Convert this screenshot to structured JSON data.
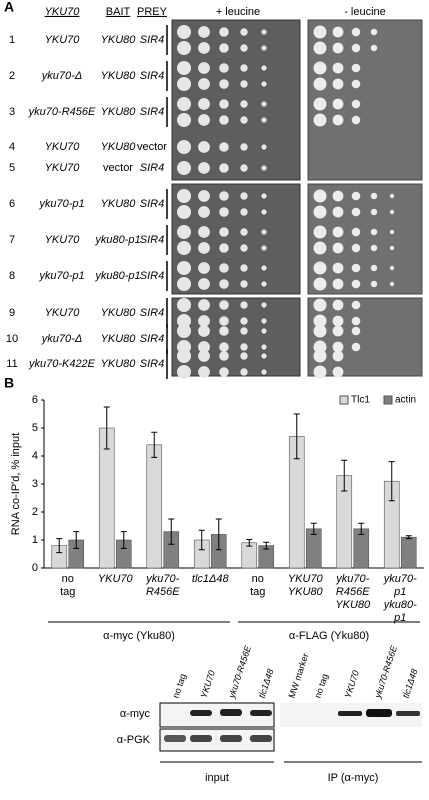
{
  "panel_a": {
    "label": "A",
    "headers": {
      "gene": "YKU70",
      "bait": "BAIT",
      "prey": "PREY",
      "plus": "+ leucine",
      "minus": "- leucine"
    },
    "rows": [
      {
        "number": "1",
        "gene": "YKU70",
        "bait": "YKU80",
        "prey": "SIR4"
      },
      {
        "number": "2",
        "gene": "yku70-Δ",
        "bait": "YKU80",
        "prey": "SIR4"
      },
      {
        "number": "3",
        "gene": "yku70-R456E",
        "bait": "YKU80",
        "prey": "SIR4"
      },
      {
        "number": "4",
        "gene": "YKU70",
        "bait": "YKU80",
        "prey": "vector"
      },
      {
        "number": "5",
        "gene": "YKU70",
        "bait": "vector",
        "prey": "SIR4"
      },
      {
        "number": "6",
        "gene": "yku70-p1",
        "bait": "YKU80",
        "prey": "SIR4"
      },
      {
        "number": "7",
        "gene": "YKU70",
        "bait": "yku80-p1",
        "prey": "SIR4"
      },
      {
        "number": "8",
        "gene": "yku70-p1",
        "bait": "yku80-p1",
        "prey": "SIR4"
      },
      {
        "number": "9",
        "gene": "YKU70",
        "bait": "YKU80",
        "prey": "SIR4"
      },
      {
        "number": "10",
        "gene": "yku70-Δ",
        "bait": "YKU80",
        "prey": "SIR4"
      },
      {
        "number": "11",
        "gene": "yku70-K422E",
        "bait": "YKU80",
        "prey": "SIR4"
      }
    ]
  },
  "panel_b_label": "B",
  "chart_data": {
    "type": "bar",
    "y_label": "RNA co-IP'd, % input",
    "categories": [
      "no tag",
      "YKU70",
      "yku70-R456E",
      "tlc1Δ48",
      "no tag",
      "YKU70 YKU80",
      "yku70-R456E YKU80",
      "yku70-p1 yku80-p1"
    ],
    "group_labels": [
      "α-myc (Yku80)",
      "α-FLAG (Yku80)"
    ],
    "series": [
      {
        "name": "Tlc1",
        "color": "#d9d9d9",
        "values": [
          0.8,
          5.0,
          4.4,
          1.0,
          0.9,
          4.7,
          3.3,
          3.1
        ],
        "errors": [
          0.25,
          0.75,
          0.45,
          0.35,
          0.12,
          0.8,
          0.55,
          0.7
        ]
      },
      {
        "name": "actin",
        "color": "#808080",
        "values": [
          1.0,
          1.0,
          1.3,
          1.2,
          0.8,
          1.4,
          1.4,
          1.1
        ],
        "errors": [
          0.3,
          0.3,
          0.45,
          0.55,
          0.12,
          0.2,
          0.2,
          0.05
        ]
      }
    ],
    "ylim": [
      0,
      6
    ],
    "yticks": [
      0,
      1,
      2,
      3,
      4,
      5,
      6
    ],
    "legend": "upper right",
    "grid": false
  },
  "blot": {
    "lanes": [
      "no tag",
      "YKU70",
      "yku70-R456E",
      "tlc1Δ48",
      "MW marker",
      "no tag",
      "YKU70",
      "yku70-R456E",
      "tlc1Δ48"
    ],
    "rows": [
      "α-myc",
      "α-PGK"
    ],
    "sections": [
      "input",
      "IP (α-myc)"
    ]
  }
}
